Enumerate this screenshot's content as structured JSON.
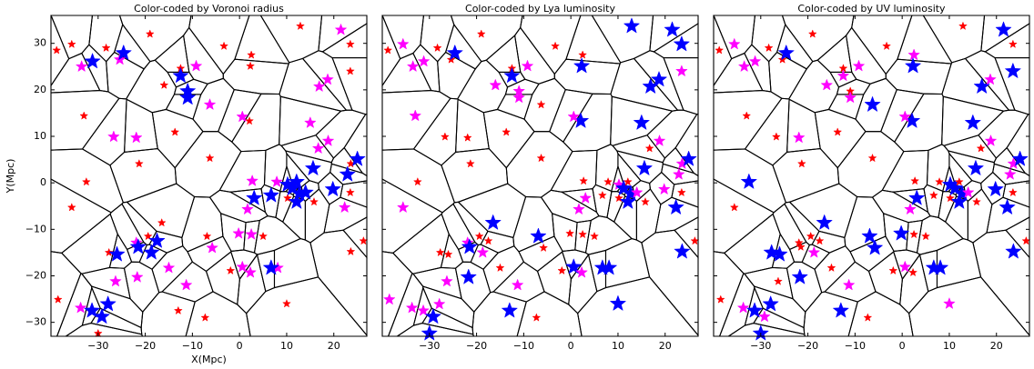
{
  "chart_data": [
    {
      "type": "scatter",
      "title": "Color-coded by Voronoi radius",
      "x_label": "X(Mpc)",
      "y_label": "Y(Mpc)",
      "xlim": [
        -40,
        27
      ],
      "ylim": [
        -33,
        36
      ],
      "xticks": [
        {
          "value": -30,
          "label": "−30"
        },
        {
          "value": -20,
          "label": "−20"
        },
        {
          "value": -10,
          "label": "−10"
        },
        0,
        10,
        20
      ],
      "yticks": [
        {
          "value": -30,
          "label": "−30"
        },
        {
          "value": -20,
          "label": "−20"
        },
        {
          "value": -10,
          "label": "−10"
        },
        0,
        10,
        20,
        30
      ],
      "show_yticklabels": true,
      "voronoi": true,
      "palette": [
        "#ff0000",
        "#ff00ff",
        "#0000ff"
      ],
      "marker_sizes": [
        4.5,
        6.5,
        9
      ],
      "x": [
        -38.8,
        -35.6,
        -28.3,
        -19,
        -3.3,
        2.5,
        2.3,
        12.9,
        23.5,
        23.5,
        -33,
        -16,
        -12.5,
        -13.7,
        2.1,
        -6.3,
        -21.3,
        -32.5,
        -35.6,
        -16.5,
        -6.9,
        -27.7,
        -30,
        -38.5,
        -13,
        -7.3,
        5,
        -1.9,
        23.5,
        26.3,
        23.6,
        23.6,
        15.8,
        10.2,
        -19.4,
        -33.5,
        -25.4,
        -9.2,
        -6.3,
        0.6,
        -26.7,
        -21.9,
        15,
        16.9,
        18.7,
        21.5,
        16.7,
        18.8,
        2.7,
        1.7,
        7.9,
        22.3,
        -0.2,
        2.5,
        -5.8,
        -21.9,
        -21.7,
        -15,
        -26.3,
        -11.3,
        -33.7,
        0.6,
        2.3,
        8.1,
        -31.2,
        -24.6,
        -12.5,
        -11,
        -11,
        25,
        15.6,
        22.9,
        19.8,
        3.1,
        6.7,
        10.2,
        11.2,
        12.1,
        12.7,
        12.1,
        14,
        -26,
        -21.5,
        -18.7,
        -17.5,
        6.7,
        -31.3,
        -29.2,
        -27.9,
        10
      ],
      "y": [
        28.5,
        29.8,
        29,
        32,
        29.4,
        27.5,
        25.1,
        33.7,
        29.8,
        24,
        14.4,
        21,
        24.6,
        10.9,
        13.3,
        5.3,
        4.1,
        0.2,
        -5.3,
        -8.6,
        -11.5,
        -15,
        -32.4,
        -25.1,
        -27.5,
        -29,
        -11.5,
        -18.9,
        -2.1,
        -12.5,
        -14.8,
        4.1,
        -4.1,
        -3.3,
        -11.5,
        25,
        26.5,
        25.1,
        16.8,
        14.2,
        9.9,
        9.7,
        12.9,
        20.7,
        22.2,
        32.9,
        7.4,
        9,
        0.4,
        -5.7,
        0.2,
        -5.3,
        -10.9,
        -11.1,
        -14,
        -12.9,
        -20.3,
        -18.3,
        -21.2,
        -22,
        -26.9,
        -18.1,
        -19.3,
        -18.3,
        26.1,
        27.9,
        23,
        19.7,
        18.3,
        5.1,
        3.1,
        1.8,
        -1.4,
        -3.3,
        -2.7,
        -0.4,
        -1.2,
        0.2,
        -2.3,
        -4.1,
        -2.1,
        -15.4,
        -13.8,
        -15,
        -12.5,
        -18.3,
        -27.5,
        -28.8,
        -26.1,
        -26
      ],
      "colors": [
        "#ff0000",
        "#ff0000",
        "#ff0000",
        "#ff0000",
        "#ff0000",
        "#ff0000",
        "#ff0000",
        "#ff0000",
        "#ff0000",
        "#ff0000",
        "#ff0000",
        "#ff0000",
        "#ff0000",
        "#ff0000",
        "#ff0000",
        "#ff0000",
        "#ff0000",
        "#ff0000",
        "#ff0000",
        "#ff0000",
        "#ff0000",
        "#ff0000",
        "#ff0000",
        "#ff0000",
        "#ff0000",
        "#ff0000",
        "#ff0000",
        "#ff0000",
        "#ff0000",
        "#ff0000",
        "#ff0000",
        "#ff0000",
        "#ff0000",
        "#ff0000",
        "#ff0000",
        "#ff00ff",
        "#ff00ff",
        "#ff00ff",
        "#ff00ff",
        "#ff00ff",
        "#ff00ff",
        "#ff00ff",
        "#ff00ff",
        "#ff00ff",
        "#ff00ff",
        "#ff00ff",
        "#ff00ff",
        "#ff00ff",
        "#ff00ff",
        "#ff00ff",
        "#ff00ff",
        "#ff00ff",
        "#ff00ff",
        "#ff00ff",
        "#ff00ff",
        "#ff00ff",
        "#ff00ff",
        "#ff00ff",
        "#ff00ff",
        "#ff00ff",
        "#ff00ff",
        "#ff00ff",
        "#ff00ff",
        "#ff00ff",
        "#0000ff",
        "#0000ff",
        "#0000ff",
        "#0000ff",
        "#0000ff",
        "#0000ff",
        "#0000ff",
        "#0000ff",
        "#0000ff",
        "#0000ff",
        "#0000ff",
        "#0000ff",
        "#0000ff",
        "#0000ff",
        "#0000ff",
        "#0000ff",
        "#0000ff",
        "#0000ff",
        "#0000ff",
        "#0000ff",
        "#0000ff",
        "#0000ff",
        "#0000ff",
        "#0000ff",
        "#0000ff",
        "#ff0000"
      ]
    },
    {
      "type": "scatter",
      "title": "Color-coded by Lya luminosity",
      "xlim": [
        -40,
        27
      ],
      "ylim": [
        -33,
        36
      ],
      "xticks": [
        {
          "value": -30,
          "label": "−30"
        },
        {
          "value": -20,
          "label": "−20"
        },
        {
          "value": -10,
          "label": "−10"
        },
        0,
        10,
        20
      ],
      "yticks": [
        -30,
        -20,
        -10,
        0,
        10,
        20,
        30
      ],
      "show_yticklabels": false,
      "voronoi": true,
      "palette": [
        "#ff0000",
        "#ff00ff",
        "#0000ff"
      ],
      "marker_sizes": [
        4.5,
        6.5,
        9
      ],
      "x": [
        -38.8,
        -35.6,
        -28.3,
        -19,
        -3.3,
        2.5,
        2.3,
        12.9,
        23.5,
        23.5,
        -33,
        -16,
        -12.5,
        -13.7,
        2.1,
        -6.3,
        -21.3,
        -32.5,
        -35.6,
        -16.5,
        -6.9,
        -27.7,
        -30,
        -38.5,
        -13,
        -7.3,
        5,
        -1.9,
        23.5,
        26.3,
        23.6,
        23.6,
        15.8,
        10.2,
        -19.4,
        -33.5,
        -25.4,
        -9.2,
        -6.3,
        0.6,
        -26.7,
        -21.9,
        15,
        16.9,
        18.7,
        21.5,
        16.7,
        18.8,
        2.7,
        1.7,
        7.9,
        22.3,
        -0.2,
        2.5,
        -5.8,
        -21.9,
        -21.7,
        -15,
        -26.3,
        -11.3,
        -33.7,
        0.6,
        2.3,
        8.1,
        -31.2,
        -24.6,
        -12.5,
        -11,
        -11,
        25,
        15.6,
        22.9,
        19.8,
        3.1,
        6.7,
        10.2,
        11.2,
        12.1,
        12.7,
        12.1,
        14,
        -26,
        -21.5,
        -18.7,
        -17.5,
        6.7,
        -31.3,
        -29.2,
        -27.9,
        10
      ],
      "y": [
        28.5,
        29.8,
        29,
        32,
        29.4,
        27.5,
        25.1,
        33.7,
        29.8,
        24,
        14.4,
        21,
        24.6,
        10.9,
        13.3,
        5.3,
        4.1,
        0.2,
        -5.3,
        -8.6,
        -11.5,
        -15,
        -32.4,
        -25.1,
        -27.5,
        -29,
        -11.5,
        -18.9,
        -2.1,
        -12.5,
        -14.8,
        4.1,
        -4.1,
        -3.3,
        -11.5,
        25,
        26.5,
        25.1,
        16.8,
        14.2,
        9.9,
        9.7,
        12.9,
        20.7,
        22.2,
        32.9,
        7.4,
        9,
        0.4,
        -5.7,
        0.2,
        -5.3,
        -10.9,
        -11.1,
        -14,
        -12.9,
        -20.3,
        -18.3,
        -21.2,
        -22,
        -26.9,
        -18.1,
        -19.3,
        -18.3,
        26.1,
        27.9,
        23,
        19.7,
        18.3,
        5.1,
        3.1,
        1.8,
        -1.4,
        -3.3,
        -2.7,
        -0.4,
        -1.2,
        0.2,
        -2.3,
        -4.1,
        -2.1,
        -15.4,
        -13.8,
        -15,
        -12.5,
        -18.3,
        -27.5,
        -28.8,
        -26.1,
        -26
      ],
      "colors": [
        "#ff0000",
        "#ff00ff",
        "#ff0000",
        "#ff0000",
        "#ff0000",
        "#ff0000",
        "#0000ff",
        "#0000ff",
        "#0000ff",
        "#ff00ff",
        "#ff00ff",
        "#ff00ff",
        "#ff0000",
        "#ff0000",
        "#0000ff",
        "#ff0000",
        "#ff0000",
        "#ff0000",
        "#ff00ff",
        "#0000ff",
        "#0000ff",
        "#ff0000",
        "#0000ff",
        "#ff00ff",
        "#0000ff",
        "#ff0000",
        "#ff0000",
        "#ff0000",
        "#ff0000",
        "#ff0000",
        "#0000ff",
        "#ff00ff",
        "#ff0000",
        "#ff0000",
        "#ff0000",
        "#ff00ff",
        "#ff0000",
        "#ff00ff",
        "#ff0000",
        "#ff00ff",
        "#ff0000",
        "#ff0000",
        "#0000ff",
        "#0000ff",
        "#0000ff",
        "#0000ff",
        "#ff0000",
        "#ff00ff",
        "#ff0000",
        "#ff00ff",
        "#ff0000",
        "#0000ff",
        "#ff0000",
        "#ff0000",
        "#ff0000",
        "#ff00ff",
        "#0000ff",
        "#ff0000",
        "#ff00ff",
        "#ff00ff",
        "#ff00ff",
        "#0000ff",
        "#ff00ff",
        "#0000ff",
        "#ff00ff",
        "#0000ff",
        "#0000ff",
        "#ff00ff",
        "#ff00ff",
        "#0000ff",
        "#0000ff",
        "#ff00ff",
        "#ff00ff",
        "#ff00ff",
        "#ff0000",
        "#ff00ff",
        "#0000ff",
        "#ff0000",
        "#0000ff",
        "#0000ff",
        "#ff00ff",
        "#ff0000",
        "#0000ff",
        "#ff00ff",
        "#ff0000",
        "#0000ff",
        "#ff00ff",
        "#0000ff",
        "#ff00ff",
        "#0000ff"
      ]
    },
    {
      "type": "scatter",
      "title": "Color-coded by UV luminosity",
      "xlim": [
        -40,
        27
      ],
      "ylim": [
        -33,
        36
      ],
      "xticks": [
        {
          "value": -30,
          "label": "−30"
        },
        {
          "value": -20,
          "label": "−20"
        },
        {
          "value": -10,
          "label": "−10"
        },
        0,
        10,
        20
      ],
      "yticks": [
        -30,
        -20,
        -10,
        0,
        10,
        20,
        30
      ],
      "show_yticklabels": false,
      "voronoi": true,
      "palette": [
        "#ff0000",
        "#ff00ff",
        "#0000ff"
      ],
      "marker_sizes": [
        4.5,
        6.5,
        9
      ],
      "x": [
        -38.8,
        -35.6,
        -28.3,
        -19,
        -3.3,
        2.5,
        2.3,
        12.9,
        23.5,
        23.5,
        -33,
        -16,
        -12.5,
        -13.7,
        2.1,
        -6.3,
        -21.3,
        -32.5,
        -35.6,
        -16.5,
        -6.9,
        -27.7,
        -30,
        -38.5,
        -13,
        -7.3,
        5,
        -1.9,
        23.5,
        26.3,
        23.6,
        23.6,
        15.8,
        10.2,
        -19.4,
        -33.5,
        -25.4,
        -9.2,
        -6.3,
        0.6,
        -26.7,
        -21.9,
        15,
        16.9,
        18.7,
        21.5,
        16.7,
        18.8,
        2.7,
        1.7,
        7.9,
        22.3,
        -0.2,
        2.5,
        -5.8,
        -21.9,
        -21.7,
        -15,
        -26.3,
        -11.3,
        -33.7,
        0.6,
        2.3,
        8.1,
        -31.2,
        -24.6,
        -12.5,
        -11,
        -11,
        25,
        15.6,
        22.9,
        19.8,
        3.1,
        6.7,
        10.2,
        11.2,
        12.1,
        12.7,
        12.1,
        14,
        -26,
        -21.5,
        -18.7,
        -17.5,
        6.7,
        -31.3,
        -29.2,
        -27.9,
        10
      ],
      "y": [
        28.5,
        29.8,
        29,
        32,
        29.4,
        27.5,
        25.1,
        33.7,
        29.8,
        24,
        14.4,
        21,
        24.6,
        10.9,
        13.3,
        5.3,
        4.1,
        0.2,
        -5.3,
        -8.6,
        -11.5,
        -15,
        -32.4,
        -25.1,
        -27.5,
        -29,
        -11.5,
        -18.9,
        -2.1,
        -12.5,
        -14.8,
        4.1,
        -4.1,
        -3.3,
        -11.5,
        25,
        26.5,
        25.1,
        16.8,
        14.2,
        9.9,
        9.7,
        12.9,
        20.7,
        22.2,
        32.9,
        7.4,
        9,
        0.4,
        -5.7,
        0.2,
        -5.3,
        -10.9,
        -11.1,
        -14,
        -12.9,
        -20.3,
        -18.3,
        -21.2,
        -22,
        -26.9,
        -18.1,
        -19.3,
        -18.3,
        26.1,
        27.9,
        23,
        19.7,
        18.3,
        5.1,
        3.1,
        1.8,
        -1.4,
        -3.3,
        -2.7,
        -0.4,
        -1.2,
        0.2,
        -2.3,
        -4.1,
        -2.1,
        -15.4,
        -13.8,
        -15,
        -12.5,
        -18.3,
        -27.5,
        -28.8,
        -26.1,
        -26
      ],
      "colors": [
        "#ff0000",
        "#ff00ff",
        "#ff0000",
        "#ff0000",
        "#ff0000",
        "#ff00ff",
        "#0000ff",
        "#ff0000",
        "#ff0000",
        "#0000ff",
        "#ff0000",
        "#ff00ff",
        "#ff0000",
        "#ff0000",
        "#0000ff",
        "#ff0000",
        "#ff0000",
        "#0000ff",
        "#ff0000",
        "#0000ff",
        "#0000ff",
        "#0000ff",
        "#0000ff",
        "#ff0000",
        "#0000ff",
        "#ff0000",
        "#ff0000",
        "#ff0000",
        "#ff0000",
        "#ff0000",
        "#0000ff",
        "#ff00ff",
        "#ff0000",
        "#ff0000",
        "#ff0000",
        "#ff00ff",
        "#ff0000",
        "#ff00ff",
        "#0000ff",
        "#ff00ff",
        "#ff0000",
        "#ff00ff",
        "#0000ff",
        "#0000ff",
        "#ff00ff",
        "#0000ff",
        "#ff0000",
        "#ff00ff",
        "#ff0000",
        "#ff00ff",
        "#ff0000",
        "#0000ff",
        "#0000ff",
        "#ff0000",
        "#0000ff",
        "#ff0000",
        "#0000ff",
        "#ff0000",
        "#ff0000",
        "#ff00ff",
        "#ff00ff",
        "#ff00ff",
        "#ff0000",
        "#0000ff",
        "#ff00ff",
        "#0000ff",
        "#ff00ff",
        "#ff0000",
        "#ff00ff",
        "#0000ff",
        "#0000ff",
        "#ff00ff",
        "#0000ff",
        "#0000ff",
        "#ff0000",
        "#0000ff",
        "#0000ff",
        "#ff0000",
        "#0000ff",
        "#0000ff",
        "#ff00ff",
        "#0000ff",
        "#ff0000",
        "#ff00ff",
        "#ff0000",
        "#0000ff",
        "#0000ff",
        "#ff00ff",
        "#0000ff",
        "#ff00ff"
      ]
    }
  ]
}
